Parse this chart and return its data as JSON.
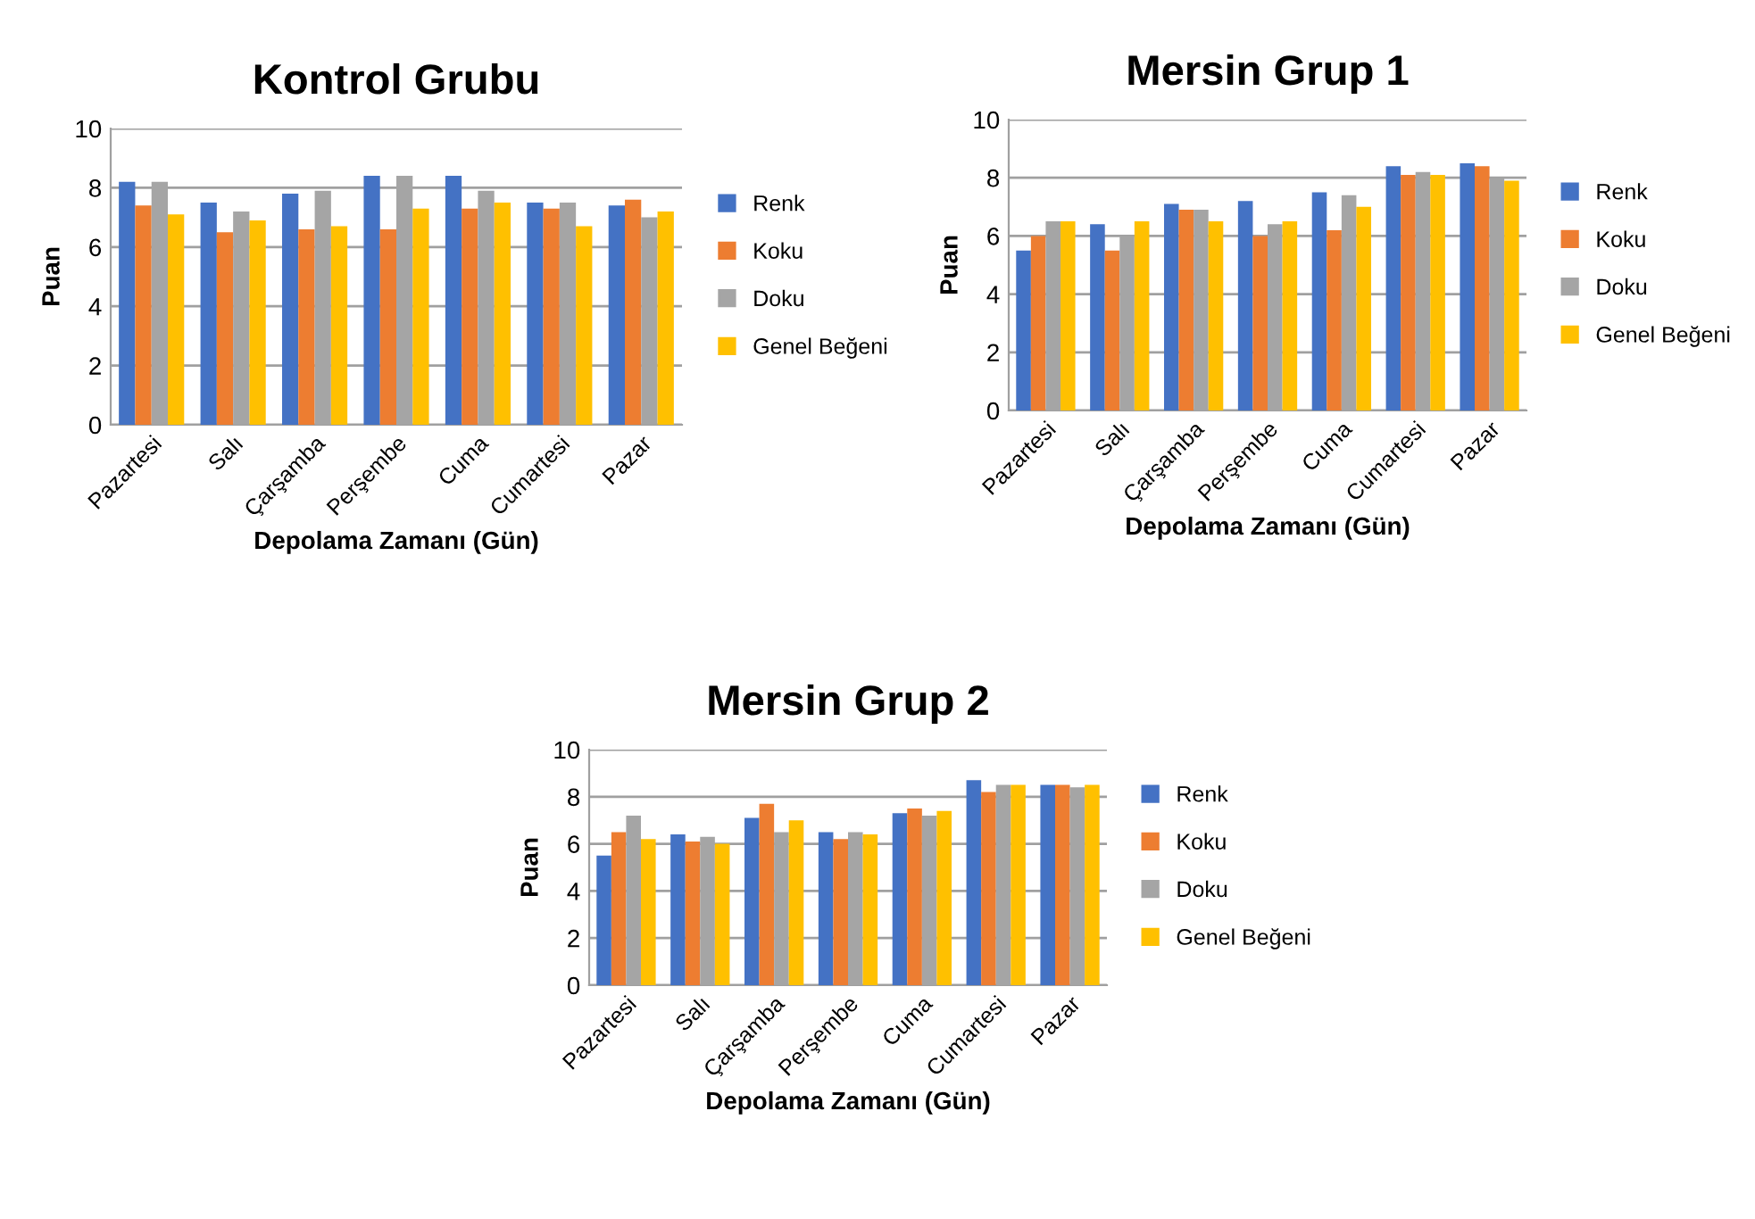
{
  "chart_data": [
    {
      "type": "bar",
      "title": "Kontrol Grubu",
      "xlabel": "Depolama Zamanı (Gün)",
      "ylabel": "Puan",
      "categories": [
        "Pazartesi",
        "Salı",
        "Çarşamba",
        "Perşembe",
        "Cuma",
        "Cumartesi",
        "Pazar"
      ],
      "series": [
        {
          "name": "Renk",
          "color": "#4472c4",
          "values": [
            8.2,
            7.5,
            7.8,
            8.4,
            8.4,
            7.5,
            7.4
          ]
        },
        {
          "name": "Koku",
          "color": "#ed7d31",
          "values": [
            7.4,
            6.5,
            6.6,
            6.6,
            7.3,
            7.3,
            7.6
          ]
        },
        {
          "name": "Doku",
          "color": "#a5a5a5",
          "values": [
            8.2,
            7.2,
            7.9,
            8.4,
            7.9,
            7.5,
            7.0
          ]
        },
        {
          "name": "Genel Beğeni",
          "color": "#ffc000",
          "values": [
            7.1,
            6.9,
            6.7,
            7.3,
            7.5,
            6.7,
            7.2
          ]
        }
      ],
      "ylim": [
        0,
        10
      ],
      "yticks": [
        0,
        2,
        4,
        6,
        8,
        10
      ],
      "grid": "y",
      "legend": "right"
    },
    {
      "type": "bar",
      "title": "Mersin Grup 1",
      "xlabel": "Depolama Zamanı (Gün)",
      "ylabel": "Puan",
      "categories": [
        "Pazartesi",
        "Salı",
        "Çarşamba",
        "Perşembe",
        "Cuma",
        "Cumartesi",
        "Pazar"
      ],
      "series": [
        {
          "name": "Renk",
          "color": "#4472c4",
          "values": [
            5.5,
            6.4,
            7.1,
            7.2,
            7.5,
            8.4,
            8.5
          ]
        },
        {
          "name": "Koku",
          "color": "#ed7d31",
          "values": [
            6.0,
            5.5,
            6.9,
            6.0,
            6.2,
            8.1,
            8.4
          ]
        },
        {
          "name": "Doku",
          "color": "#a5a5a5",
          "values": [
            6.5,
            6.0,
            6.9,
            6.4,
            7.4,
            8.2,
            8.0
          ]
        },
        {
          "name": "Genel Beğeni",
          "color": "#ffc000",
          "values": [
            6.5,
            6.5,
            6.5,
            6.5,
            7.0,
            8.1,
            7.9
          ]
        }
      ],
      "ylim": [
        0,
        10
      ],
      "yticks": [
        0,
        2,
        4,
        6,
        8,
        10
      ],
      "grid": "y",
      "legend": "right"
    },
    {
      "type": "bar",
      "title": "Mersin Grup 2",
      "xlabel": "Depolama Zamanı (Gün)",
      "ylabel": "Puan",
      "categories": [
        "Pazartesi",
        "Salı",
        "Çarşamba",
        "Perşembe",
        "Cuma",
        "Cumartesi",
        "Pazar"
      ],
      "series": [
        {
          "name": "Renk",
          "color": "#4472c4",
          "values": [
            5.5,
            6.4,
            7.1,
            6.5,
            7.3,
            8.7,
            8.5
          ]
        },
        {
          "name": "Koku",
          "color": "#ed7d31",
          "values": [
            6.5,
            6.1,
            7.7,
            6.2,
            7.5,
            8.2,
            8.5
          ]
        },
        {
          "name": "Doku",
          "color": "#a5a5a5",
          "values": [
            7.2,
            6.3,
            6.5,
            6.5,
            7.2,
            8.5,
            8.4
          ]
        },
        {
          "name": "Genel Beğeni",
          "color": "#ffc000",
          "values": [
            6.2,
            6.0,
            7.0,
            6.4,
            7.4,
            8.5,
            8.5
          ]
        }
      ],
      "ylim": [
        0,
        10
      ],
      "yticks": [
        0,
        2,
        4,
        6,
        8,
        10
      ],
      "grid": "y",
      "legend": "right"
    }
  ]
}
